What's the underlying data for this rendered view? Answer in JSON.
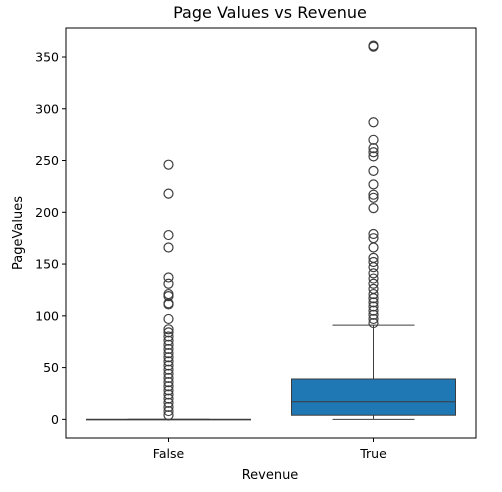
{
  "chart_data": {
    "type": "box",
    "title": "Page Values vs Revenue",
    "xlabel": "Revenue",
    "ylabel": "PageValues",
    "ylim": [
      -18,
      378
    ],
    "yticks": [
      0,
      50,
      100,
      150,
      200,
      250,
      300,
      350
    ],
    "categories": [
      "False",
      "True"
    ],
    "grid": false,
    "legend": "none",
    "boxes": [
      {
        "category": "False",
        "color": "#1f77b4",
        "whisker_low": 0,
        "q1": 0,
        "median": 0,
        "q3": 0,
        "whisker_high": 0,
        "outliers": [
          246,
          218,
          178,
          166,
          137,
          131,
          121,
          119,
          112,
          111,
          97,
          87,
          84,
          80,
          76,
          72,
          68,
          64,
          60,
          56,
          52,
          48,
          44,
          40,
          36,
          32,
          28,
          24,
          20,
          16,
          12,
          8,
          4
        ]
      },
      {
        "category": "True",
        "color": "#1f77b4",
        "whisker_low": 0,
        "q1": 4,
        "median": 17,
        "q3": 39,
        "whisker_high": 91,
        "outliers": [
          361,
          360,
          287,
          270,
          262,
          258,
          254,
          240,
          227,
          217,
          214,
          204,
          179,
          175,
          166,
          156,
          152,
          147,
          141,
          136,
          131,
          126,
          121,
          117,
          113,
          109,
          105,
          101,
          97,
          93
        ]
      }
    ]
  }
}
